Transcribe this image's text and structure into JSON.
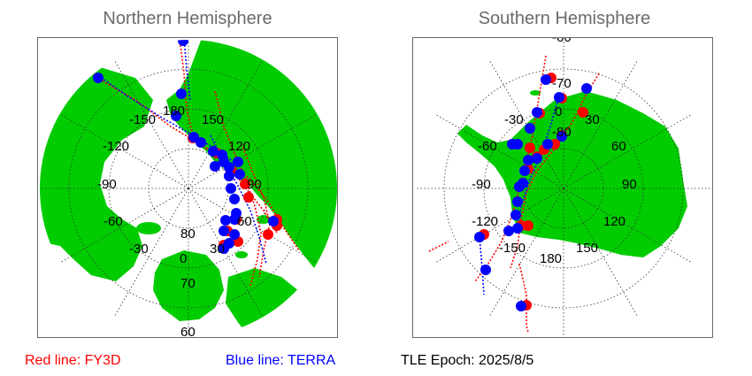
{
  "north": {
    "title": "Northern Hemisphere",
    "longitude_labels": [
      "-150",
      "-120",
      "-90",
      "-60",
      "-30",
      "0",
      "30",
      "60",
      "90",
      "120",
      "150",
      "180"
    ],
    "latitude_labels": [
      "80",
      "70",
      "60"
    ]
  },
  "south": {
    "title": "Southern Hemisphere",
    "longitude_labels": [
      "0",
      "30",
      "60",
      "90",
      "120",
      "150",
      "180",
      "-150",
      "-120",
      "-90",
      "-60",
      "-30"
    ],
    "latitude_labels": [
      "-60",
      "-70",
      "-80"
    ]
  },
  "legend": {
    "red_line": "Red line: FY3D",
    "blue_line": "Blue line: TERRA",
    "epoch": "TLE Epoch: 2025/8/5"
  },
  "colors": {
    "land": "#00cc00",
    "ocean": "#ffffff",
    "grid": "#333333",
    "fy3d": "#ff0000",
    "terra": "#0000ff",
    "title": "#6b6b6b"
  }
}
